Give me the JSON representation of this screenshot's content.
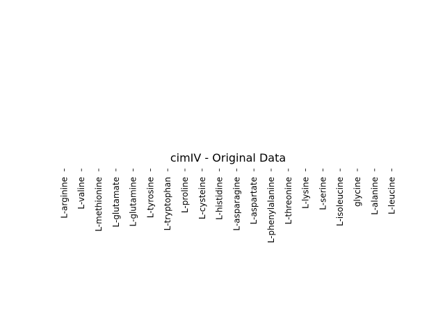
{
  "chart_data": {
    "type": "heatmap",
    "title": "cimIV - Original Data",
    "xlabel": "",
    "ylabel": "",
    "categories": [
      "L-arginine",
      "L-valine",
      "L-methionine",
      "L-glutamate",
      "L-glutamine",
      "L-tyrosine",
      "L-tryptophan",
      "L-proline",
      "L-cysteine",
      "L-histidine",
      "L-asparagine",
      "L-aspartate",
      "L-phenylalanine",
      "L-threonine",
      "L-lysine",
      "L-serine",
      "L-isoleucine",
      "glycine",
      "L-alanine",
      "L-leucine"
    ],
    "grid": false,
    "legend": "none"
  }
}
